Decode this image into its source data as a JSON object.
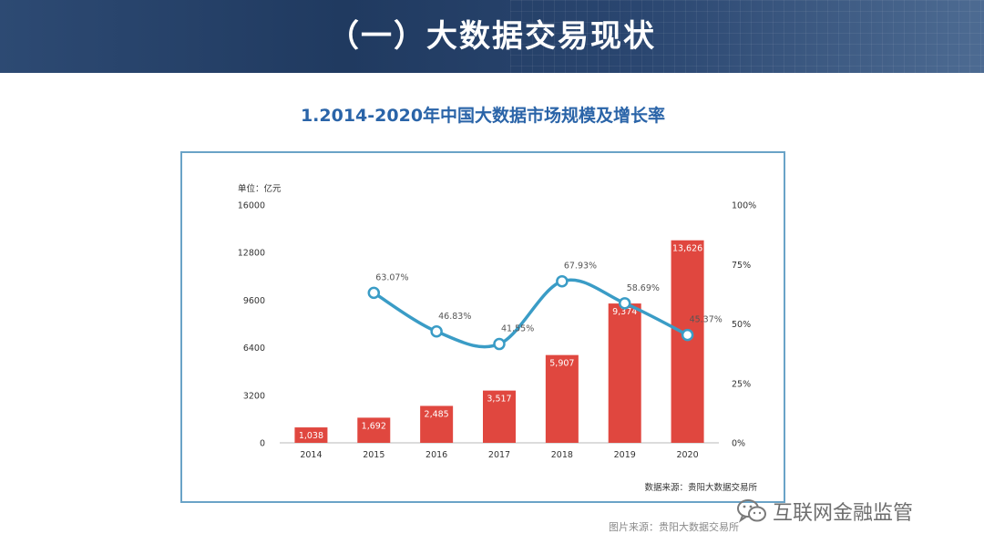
{
  "header": {
    "title": "（一）大数据交易现状"
  },
  "subtitle": "1.2014-2020年中国大数据市场规模及增长率",
  "footer": {
    "source": "图片来源：贵阳大数据交易所"
  },
  "watermark": {
    "text": "互联网金融监管",
    "icon": "wechat-icon"
  },
  "colors": {
    "bar": "#e0473f",
    "line": "#3a9cc6",
    "header": "#24406a",
    "title": "#2a64a8"
  },
  "chart_data": {
    "type": "bar",
    "unit_label": "单位：亿元",
    "source_note": "数据来源：贵阳大数据交易所",
    "categories": [
      "2014",
      "2015",
      "2016",
      "2017",
      "2018",
      "2019",
      "2020"
    ],
    "series": [
      {
        "type": "bar",
        "values": [
          1038,
          1692,
          2485,
          3517,
          5907,
          9374,
          13626
        ],
        "labels": [
          "1,038",
          "1,692",
          "2,485",
          "3,517",
          "5,907",
          "9,374",
          "13,626"
        ]
      },
      {
        "type": "line",
        "axis": "right",
        "values": [
          null,
          63.07,
          46.83,
          41.55,
          67.93,
          58.69,
          45.37
        ],
        "labels": [
          "",
          "63.07%",
          "46.83%",
          "41.55%",
          "67.93%",
          "58.69%",
          "45.37%"
        ]
      }
    ],
    "y_left": {
      "ticks": [
        "0",
        "3200",
        "6400",
        "9600",
        "12800",
        "16000"
      ],
      "ylim": [
        0,
        16000
      ]
    },
    "y_right": {
      "ticks": [
        "0%",
        "25%",
        "50%",
        "75%",
        "100%"
      ],
      "ylim": [
        0,
        100
      ]
    },
    "grid": false,
    "legend": "none"
  }
}
